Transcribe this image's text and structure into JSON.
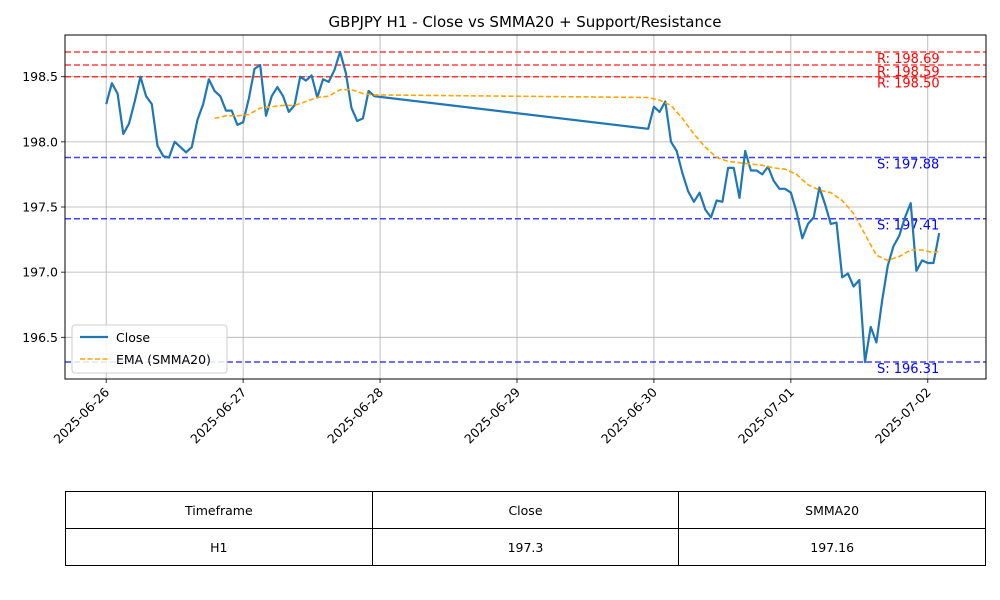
{
  "chart_data": {
    "type": "line",
    "title": "GBPJPY H1 - Close vs SMMA20 + Support/Resistance",
    "xlabel": "",
    "ylabel": "",
    "x_tick_labels": [
      "2025-06-26",
      "2025-06-27",
      "2025-06-28",
      "2025-06-29",
      "2025-06-30",
      "2025-07-01",
      "2025-07-02"
    ],
    "y_tick_labels": [
      "196.5",
      "197.0",
      "197.5",
      "198.0",
      "198.5"
    ],
    "ylim": [
      196.18,
      198.82
    ],
    "grid": true,
    "legend_position": "lower-left",
    "series": [
      {
        "name": "Close",
        "color": "#1f77b4",
        "style": "solid",
        "points": [
          [
            "2025-06-26 00:00",
            198.29
          ],
          [
            "2025-06-26 01:00",
            198.45
          ],
          [
            "2025-06-26 02:00",
            198.37
          ],
          [
            "2025-06-26 03:00",
            198.06
          ],
          [
            "2025-06-26 04:00",
            198.14
          ],
          [
            "2025-06-26 05:00",
            198.31
          ],
          [
            "2025-06-26 06:00",
            198.5
          ],
          [
            "2025-06-26 07:00",
            198.35
          ],
          [
            "2025-06-26 08:00",
            198.29
          ],
          [
            "2025-06-26 09:00",
            197.97
          ],
          [
            "2025-06-26 10:00",
            197.89
          ],
          [
            "2025-06-26 11:00",
            197.88
          ],
          [
            "2025-06-26 12:00",
            198.0
          ],
          [
            "2025-06-26 13:00",
            197.96
          ],
          [
            "2025-06-26 14:00",
            197.92
          ],
          [
            "2025-06-26 15:00",
            197.96
          ],
          [
            "2025-06-26 16:00",
            198.17
          ],
          [
            "2025-06-26 17:00",
            198.29
          ],
          [
            "2025-06-26 18:00",
            198.48
          ],
          [
            "2025-06-26 19:00",
            198.39
          ],
          [
            "2025-06-26 20:00",
            198.35
          ],
          [
            "2025-06-26 21:00",
            198.24
          ],
          [
            "2025-06-26 22:00",
            198.24
          ],
          [
            "2025-06-26 23:00",
            198.13
          ],
          [
            "2025-06-27 00:00",
            198.15
          ],
          [
            "2025-06-27 01:00",
            198.33
          ],
          [
            "2025-06-27 02:00",
            198.56
          ],
          [
            "2025-06-27 03:00",
            198.59
          ],
          [
            "2025-06-27 04:00",
            198.2
          ],
          [
            "2025-06-27 05:00",
            198.35
          ],
          [
            "2025-06-27 06:00",
            198.42
          ],
          [
            "2025-06-27 07:00",
            198.35
          ],
          [
            "2025-06-27 08:00",
            198.23
          ],
          [
            "2025-06-27 09:00",
            198.28
          ],
          [
            "2025-06-27 10:00",
            198.5
          ],
          [
            "2025-06-27 11:00",
            198.47
          ],
          [
            "2025-06-27 12:00",
            198.51
          ],
          [
            "2025-06-27 13:00",
            198.34
          ],
          [
            "2025-06-27 14:00",
            198.48
          ],
          [
            "2025-06-27 15:00",
            198.46
          ],
          [
            "2025-06-27 16:00",
            198.55
          ],
          [
            "2025-06-27 17:00",
            198.69
          ],
          [
            "2025-06-27 18:00",
            198.53
          ],
          [
            "2025-06-27 19:00",
            198.26
          ],
          [
            "2025-06-27 20:00",
            198.16
          ],
          [
            "2025-06-27 21:00",
            198.18
          ],
          [
            "2025-06-27 22:00",
            198.39
          ],
          [
            "2025-06-27 23:00",
            198.35
          ],
          [
            "2025-06-29 23:00",
            198.1
          ],
          [
            "2025-06-30 00:00",
            198.27
          ],
          [
            "2025-06-30 01:00",
            198.23
          ],
          [
            "2025-06-30 02:00",
            198.31
          ],
          [
            "2025-06-30 03:00",
            198.0
          ],
          [
            "2025-06-30 04:00",
            197.93
          ],
          [
            "2025-06-30 05:00",
            197.76
          ],
          [
            "2025-06-30 06:00",
            197.62
          ],
          [
            "2025-06-30 07:00",
            197.54
          ],
          [
            "2025-06-30 08:00",
            197.61
          ],
          [
            "2025-06-30 09:00",
            197.48
          ],
          [
            "2025-06-30 10:00",
            197.42
          ],
          [
            "2025-06-30 11:00",
            197.55
          ],
          [
            "2025-06-30 12:00",
            197.54
          ],
          [
            "2025-06-30 13:00",
            197.8
          ],
          [
            "2025-06-30 14:00",
            197.8
          ],
          [
            "2025-06-30 15:00",
            197.57
          ],
          [
            "2025-06-30 16:00",
            197.93
          ],
          [
            "2025-06-30 17:00",
            197.78
          ],
          [
            "2025-06-30 18:00",
            197.78
          ],
          [
            "2025-06-30 19:00",
            197.75
          ],
          [
            "2025-06-30 20:00",
            197.81
          ],
          [
            "2025-06-30 21:00",
            197.7
          ],
          [
            "2025-06-30 22:00",
            197.64
          ],
          [
            "2025-06-30 23:00",
            197.64
          ],
          [
            "2025-07-01 00:00",
            197.61
          ],
          [
            "2025-07-01 01:00",
            197.46
          ],
          [
            "2025-07-01 02:00",
            197.26
          ],
          [
            "2025-07-01 03:00",
            197.37
          ],
          [
            "2025-07-01 04:00",
            197.42
          ],
          [
            "2025-07-01 05:00",
            197.65
          ],
          [
            "2025-07-01 06:00",
            197.52
          ],
          [
            "2025-07-01 07:00",
            197.37
          ],
          [
            "2025-07-01 08:00",
            197.38
          ],
          [
            "2025-07-01 09:00",
            196.96
          ],
          [
            "2025-07-01 10:00",
            196.99
          ],
          [
            "2025-07-01 11:00",
            196.89
          ],
          [
            "2025-07-01 12:00",
            196.94
          ],
          [
            "2025-07-01 13:00",
            196.31
          ],
          [
            "2025-07-01 14:00",
            196.58
          ],
          [
            "2025-07-01 15:00",
            196.46
          ],
          [
            "2025-07-01 16:00",
            196.78
          ],
          [
            "2025-07-01 17:00",
            197.05
          ],
          [
            "2025-07-01 18:00",
            197.2
          ],
          [
            "2025-07-01 19:00",
            197.28
          ],
          [
            "2025-07-01 20:00",
            197.42
          ],
          [
            "2025-07-01 21:00",
            197.53
          ],
          [
            "2025-07-01 22:00",
            197.01
          ],
          [
            "2025-07-01 23:00",
            197.09
          ],
          [
            "2025-07-02 00:00",
            197.07
          ],
          [
            "2025-07-02 01:00",
            197.07
          ],
          [
            "2025-07-02 02:00",
            197.3
          ]
        ]
      },
      {
        "name": "EMA (SMMA20)",
        "color": "#ffa500",
        "style": "dashed",
        "points": [
          [
            "2025-06-26 19:00",
            198.18
          ],
          [
            "2025-06-26 21:00",
            198.2
          ],
          [
            "2025-06-26 23:00",
            198.2
          ],
          [
            "2025-06-27 01:00",
            198.21
          ],
          [
            "2025-06-27 03:00",
            198.26
          ],
          [
            "2025-06-27 05:00",
            198.27
          ],
          [
            "2025-06-27 07:00",
            198.28
          ],
          [
            "2025-06-27 09:00",
            198.28
          ],
          [
            "2025-06-27 11:00",
            198.31
          ],
          [
            "2025-06-27 13:00",
            198.34
          ],
          [
            "2025-06-27 15:00",
            198.35
          ],
          [
            "2025-06-27 17:00",
            198.4
          ],
          [
            "2025-06-27 19:00",
            198.4
          ],
          [
            "2025-06-27 21:00",
            198.37
          ],
          [
            "2025-06-27 23:00",
            198.36
          ],
          [
            "2025-06-29 23:00",
            198.34
          ],
          [
            "2025-06-30 01:00",
            198.32
          ],
          [
            "2025-06-30 03:00",
            198.28
          ],
          [
            "2025-06-30 05:00",
            198.18
          ],
          [
            "2025-06-30 07:00",
            198.06
          ],
          [
            "2025-06-30 09:00",
            197.96
          ],
          [
            "2025-06-30 11:00",
            197.88
          ],
          [
            "2025-06-30 13:00",
            197.85
          ],
          [
            "2025-06-30 15:00",
            197.84
          ],
          [
            "2025-06-30 17:00",
            197.83
          ],
          [
            "2025-06-30 19:00",
            197.82
          ],
          [
            "2025-06-30 21:00",
            197.8
          ],
          [
            "2025-06-30 23:00",
            197.79
          ],
          [
            "2025-07-01 01:00",
            197.75
          ],
          [
            "2025-07-01 03:00",
            197.67
          ],
          [
            "2025-07-01 05:00",
            197.63
          ],
          [
            "2025-07-01 07:00",
            197.61
          ],
          [
            "2025-07-01 09:00",
            197.55
          ],
          [
            "2025-07-01 11:00",
            197.45
          ],
          [
            "2025-07-01 13:00",
            197.29
          ],
          [
            "2025-07-01 15:00",
            197.13
          ],
          [
            "2025-07-01 17:00",
            197.09
          ],
          [
            "2025-07-01 19:00",
            197.12
          ],
          [
            "2025-07-01 21:00",
            197.17
          ],
          [
            "2025-07-01 23:00",
            197.17
          ],
          [
            "2025-07-02 01:00",
            197.15
          ],
          [
            "2025-07-02 02:00",
            197.16
          ]
        ]
      }
    ],
    "levels": [
      {
        "kind": "resistance",
        "value": 198.69,
        "label": "R: 198.69",
        "color": "#ff0000"
      },
      {
        "kind": "resistance",
        "value": 198.59,
        "label": "R: 198.59",
        "color": "#ff0000"
      },
      {
        "kind": "resistance",
        "value": 198.5,
        "label": "R: 198.50",
        "color": "#ff0000"
      },
      {
        "kind": "support",
        "value": 197.88,
        "label": "S: 197.88",
        "color": "#0000ff"
      },
      {
        "kind": "support",
        "value": 197.41,
        "label": "S: 197.41",
        "color": "#0000ff"
      },
      {
        "kind": "support",
        "value": 196.31,
        "label": "S: 196.31",
        "color": "#0000ff"
      }
    ]
  },
  "table": {
    "headers": [
      "Timeframe",
      "Close",
      "SMMA20"
    ],
    "rows": [
      [
        "H1",
        "197.3",
        "197.16"
      ]
    ]
  }
}
